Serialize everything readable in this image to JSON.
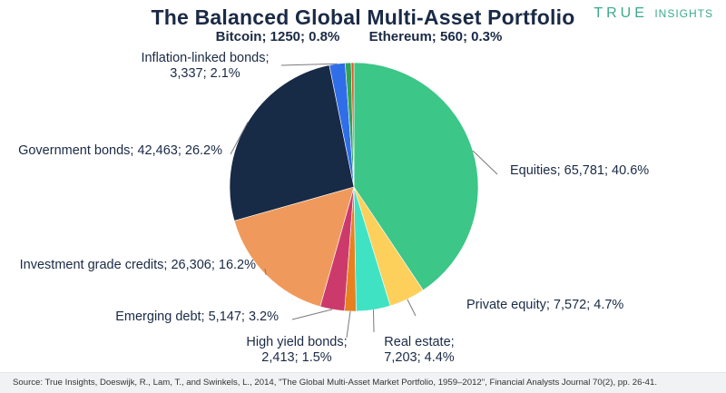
{
  "header": {
    "title": "The Balanced Global Multi-Asset Portfolio",
    "brand_primary": "TRUE",
    "brand_secondary": "INSIGHTS"
  },
  "footer": {
    "source": "Source: True Insights, Doeswijk, R., Lam, T., and Swinkels, L., 2014, \"The Global Multi-Asset Market Portfolio, 1959–2012\", Financial Analysts Journal 70(2), pp. 26-41."
  },
  "chart_data": {
    "type": "pie",
    "title": "The Balanced Global Multi-Asset Portfolio",
    "slices": [
      {
        "name": "Equities",
        "value": 65781,
        "percent": 40.6,
        "color": "#3cc687",
        "label_lines": [
          "Equities; 65,781; 40.6%"
        ],
        "bold": false
      },
      {
        "name": "Private equity",
        "value": 7572,
        "percent": 4.7,
        "color": "#fdd05b",
        "label_lines": [
          "Private equity; 7,572; 4.7%"
        ],
        "bold": false
      },
      {
        "name": "Real estate",
        "value": 7203,
        "percent": 4.4,
        "color": "#3fe3c3",
        "label_lines": [
          "Real estate;",
          "7,203; 4.4%"
        ],
        "bold": false
      },
      {
        "name": "High yield bonds",
        "value": 2413,
        "percent": 1.5,
        "color": "#e7811f",
        "label_lines": [
          "High yield bonds;",
          "2,413; 1.5%"
        ],
        "bold": false
      },
      {
        "name": "Emerging debt",
        "value": 5147,
        "percent": 3.2,
        "color": "#cc3a6b",
        "label_lines": [
          "Emerging debt; 5,147; 3.2%"
        ],
        "bold": false
      },
      {
        "name": "Investment grade credits",
        "value": 26306,
        "percent": 16.2,
        "color": "#ef9a5c",
        "label_lines": [
          "Investment grade credits; 26,306; 16.2%"
        ],
        "bold": false
      },
      {
        "name": "Government bonds",
        "value": 42463,
        "percent": 26.2,
        "color": "#172a46",
        "label_lines": [
          "Government bonds; 42,463; 26.2%"
        ],
        "bold": false
      },
      {
        "name": "Inflation-linked bonds",
        "value": 3337,
        "percent": 2.1,
        "color": "#2f6ee8",
        "label_lines": [
          "Inflation-linked bonds;",
          "3,337; 2.1%"
        ],
        "bold": false
      },
      {
        "name": "Bitcoin",
        "value": 1250,
        "percent": 0.8,
        "color": "#2ea35a",
        "label_lines": [
          "Bitcoin; 1250; 0.8%"
        ],
        "bold": true
      },
      {
        "name": "Ethereum",
        "value": 560,
        "percent": 0.3,
        "color": "#e0561e",
        "label_lines": [
          "Ethereum; 560; 0.3%"
        ],
        "bold": true
      }
    ]
  }
}
